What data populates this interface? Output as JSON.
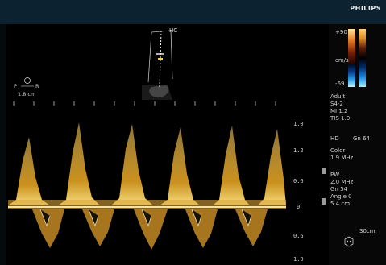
{
  "brand": "PHILIPS",
  "probe_label": "HC",
  "orientation": {
    "top": "P",
    "letters": "R",
    "sub": "1.8 cm"
  },
  "colorbar": {
    "top": "+90",
    "unit": "cm/s",
    "bottom": "-69"
  },
  "settings_block": [
    "Adult",
    "S4-2",
    "MI 1.2",
    "TIS 1.0"
  ],
  "mode_line": {
    "mode": "HD",
    "gain": "Gn 64"
  },
  "color_line": [
    "Color",
    "1.9 MHz"
  ],
  "pw_block": [
    "PW",
    "2.0 MHz",
    "Gn 54",
    "Angle 0",
    "5.4 cm"
  ],
  "depth": "30cm",
  "scale_labels": [
    "1.0",
    "1.2",
    "0.6",
    "0",
    "0.6",
    "1.0"
  ],
  "palette": {
    "doppler": "#e8b030",
    "panel_text": "#cfcfcf",
    "topbar": "#0d2230"
  }
}
